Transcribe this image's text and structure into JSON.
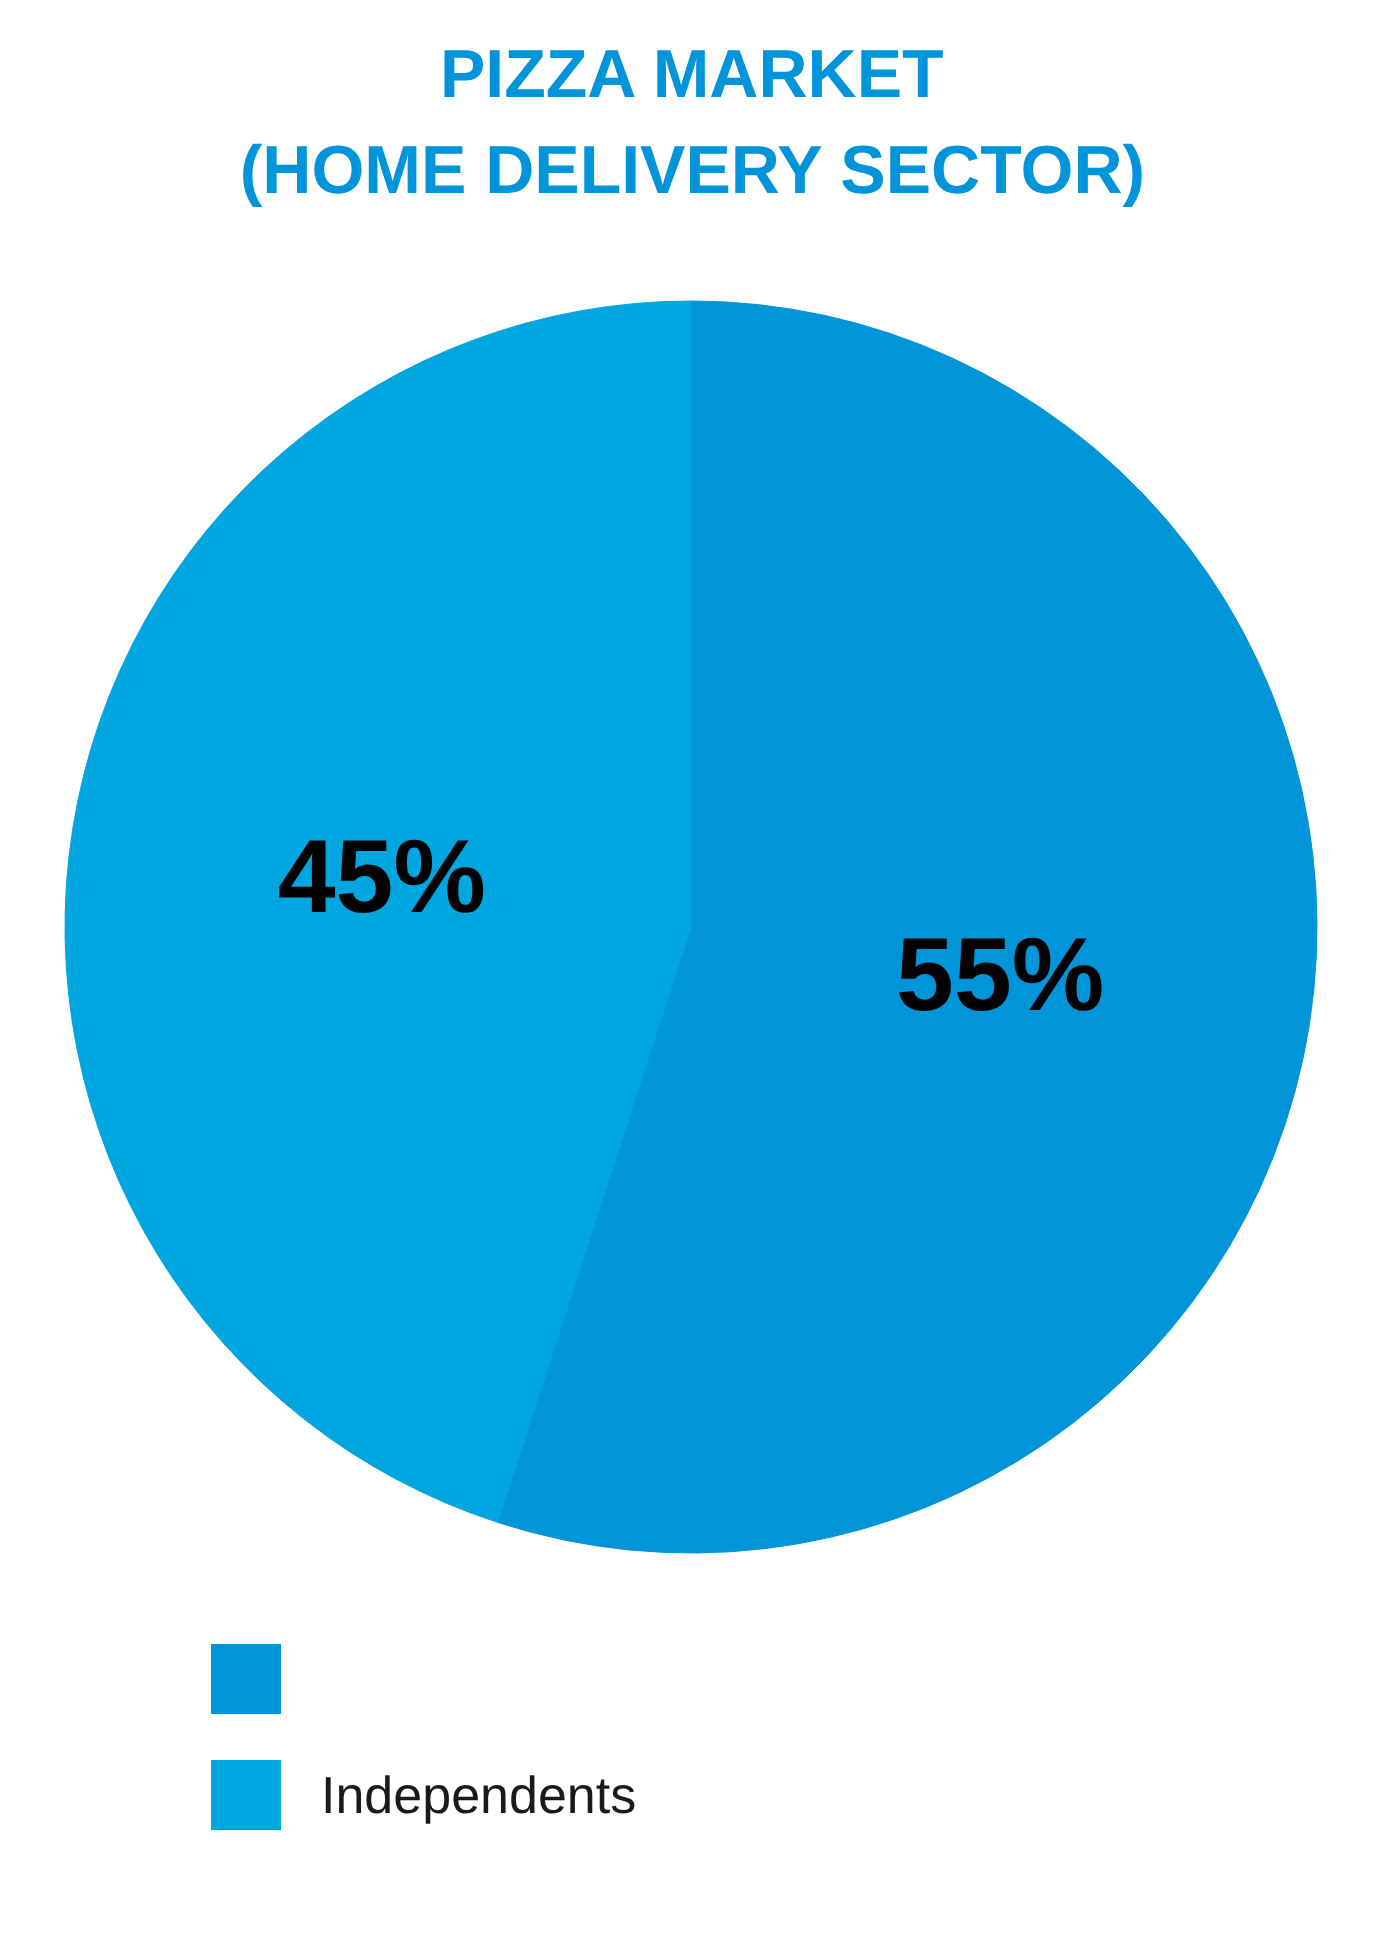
{
  "chart_data": {
    "type": "pie",
    "title": "PIZZA MARKET\n(HOME DELIVERY SECTOR)",
    "categories": [
      null,
      "Independents"
    ],
    "values": [
      55,
      45
    ],
    "value_labels": [
      "55%",
      "45%"
    ],
    "colors": [
      "#0094d9",
      "#00a6df"
    ],
    "legend": "bottom"
  }
}
